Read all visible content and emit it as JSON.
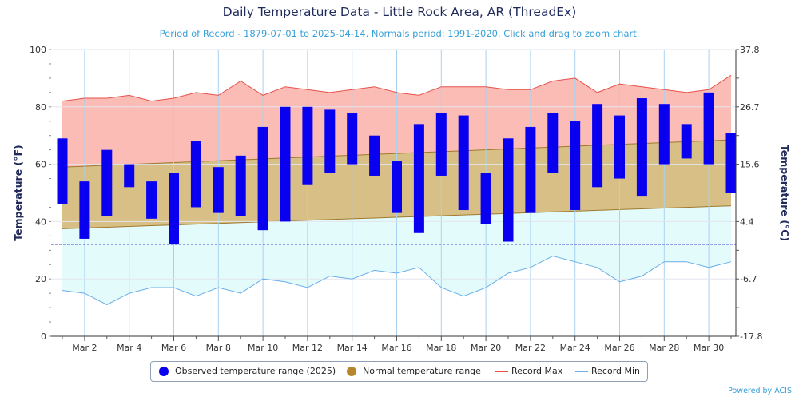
{
  "chart_data": {
    "type": "bar",
    "title": "Daily Temperature Data - Little Rock Area, AR (ThreadEx)",
    "subtitle": "Period of Record - 1879-07-01 to 2025-04-14. Normals period: 1991-2020. Click and drag to zoom chart.",
    "ylabel_left": "Temperature (°F)",
    "ylabel_right": "Temperature (°C)",
    "ylim": [
      0,
      100
    ],
    "yticks_left": [
      "0",
      "20",
      "40",
      "60",
      "80",
      "100"
    ],
    "yticks_right": [
      "-17.8",
      "-6.7",
      "4.4",
      "15.6",
      "26.7",
      "37.8"
    ],
    "xticks": [
      "Mar 2",
      "Mar 4",
      "Mar 6",
      "Mar 8",
      "Mar 10",
      "Mar 12",
      "Mar 14",
      "Mar 16",
      "Mar 18",
      "Mar 20",
      "Mar 22",
      "Mar 24",
      "Mar 26",
      "Mar 28",
      "Mar 30"
    ],
    "days": [
      1,
      2,
      3,
      4,
      5,
      6,
      7,
      8,
      9,
      10,
      11,
      12,
      13,
      14,
      15,
      16,
      17,
      18,
      19,
      20,
      21,
      22,
      23,
      24,
      25,
      26,
      27,
      28,
      29,
      30,
      31
    ],
    "freezing_line": 32,
    "series": [
      {
        "name": "Observed temperature range (2025)",
        "color": "#0a00f0",
        "low": [
          46,
          34,
          42,
          52,
          41,
          32,
          45,
          43,
          42,
          37,
          40,
          53,
          57,
          60,
          56,
          43,
          36,
          56,
          44,
          39,
          33,
          43,
          57,
          44,
          52,
          55,
          49,
          60,
          62,
          60,
          50
        ],
        "high": [
          69,
          54,
          65,
          60,
          54,
          57,
          68,
          59,
          63,
          73,
          80,
          80,
          79,
          78,
          70,
          61,
          74,
          78,
          77,
          57,
          69,
          73,
          78,
          75,
          81,
          77,
          83,
          81,
          74,
          85,
          71
        ]
      },
      {
        "name": "Normal temperature range",
        "color": "#b8862a",
        "low_start": 37.5,
        "low_end": 45.5,
        "high_start": 59,
        "high_end": 68.5
      },
      {
        "name": "Record Max",
        "color": "#e8504a",
        "values": [
          82,
          83,
          83,
          84,
          82,
          83,
          85,
          84,
          89,
          84,
          87,
          86,
          85,
          86,
          87,
          85,
          84,
          87,
          87,
          87,
          86,
          86,
          89,
          90,
          85,
          88,
          87,
          86,
          85,
          86,
          91
        ]
      },
      {
        "name": "Record Min",
        "color": "#6aaee8",
        "values": [
          16,
          15,
          11,
          15,
          17,
          17,
          14,
          17,
          15,
          20,
          19,
          17,
          21,
          20,
          23,
          22,
          24,
          17,
          14,
          17,
          22,
          24,
          28,
          26,
          24,
          19,
          21,
          26,
          26,
          24,
          26
        ]
      }
    ],
    "legend_position": "bottom-center",
    "grid": true
  },
  "footer": {
    "powered_by": "Powered by ACIS"
  }
}
